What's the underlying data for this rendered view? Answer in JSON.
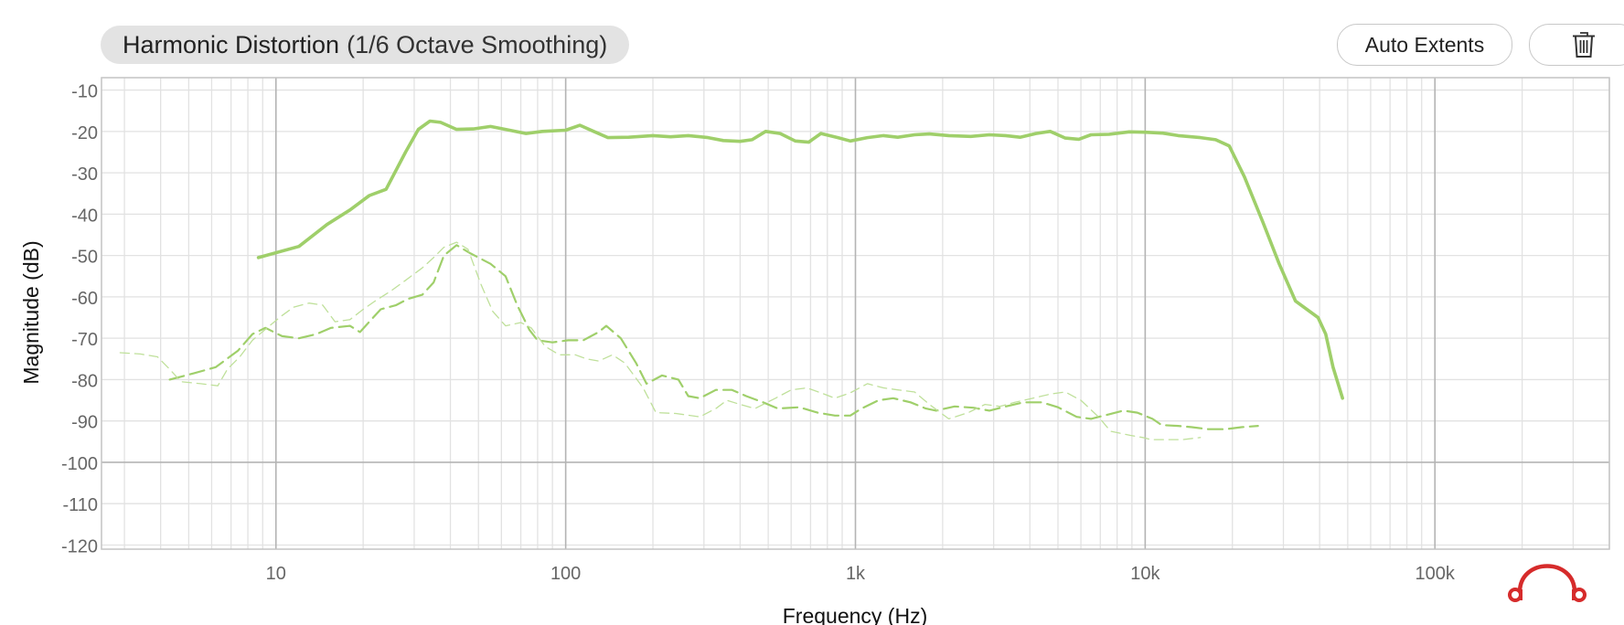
{
  "header": {
    "title": "Harmonic Distortion",
    "subtitle": "(1/6 Octave Smoothing)"
  },
  "toolbar": {
    "auto_extents_label": "Auto Extents",
    "delete_icon": "trash-icon"
  },
  "logo": {
    "icon": "headphones-logo-icon",
    "color": "#d62b2b"
  },
  "colors": {
    "series": "#9fcf6a",
    "grid": "#e2e2e2",
    "major_grid": "#b4b4b4",
    "axis_text": "#666666"
  },
  "chart_data": {
    "type": "line",
    "title": "Harmonic Distortion",
    "subtitle": "(1/6 Octave Smoothing)",
    "xlabel": "Frequency (Hz)",
    "ylabel": "Magnitude (dB)",
    "x_scale": "log",
    "xlim": [
      2.5,
      400000
    ],
    "ylim": [
      -121,
      -7
    ],
    "x_ticks": [
      10,
      100,
      1000,
      10000,
      100000
    ],
    "x_tick_labels": [
      "10",
      "100",
      "1k",
      "10k",
      "100k"
    ],
    "y_ticks": [
      -10,
      -20,
      -30,
      -40,
      -50,
      -60,
      -70,
      -80,
      -90,
      -100,
      -110,
      -120
    ],
    "y_tick_labels": [
      "-10",
      "-20",
      "-30",
      "-40",
      "-50",
      "-60",
      "-70",
      "-80",
      "-90",
      "-100",
      "-110",
      "-120"
    ],
    "grid": true,
    "legend": "none",
    "series": [
      {
        "style": "solid",
        "color": "#9fcf6a",
        "points": [
          [
            8.7,
            -50.5
          ],
          [
            12,
            -47.8
          ],
          [
            15,
            -42.5
          ],
          [
            18,
            -39
          ],
          [
            21,
            -35.5
          ],
          [
            24,
            -34
          ],
          [
            28,
            -25
          ],
          [
            31,
            -19.5
          ],
          [
            34,
            -17.5
          ],
          [
            37,
            -17.8
          ],
          [
            42,
            -19.5
          ],
          [
            48,
            -19.4
          ],
          [
            55,
            -18.8
          ],
          [
            62,
            -19.5
          ],
          [
            73,
            -20.5
          ],
          [
            83,
            -20
          ],
          [
            100,
            -19.7
          ],
          [
            112,
            -18.5
          ],
          [
            125,
            -20
          ],
          [
            140,
            -21.5
          ],
          [
            165,
            -21.4
          ],
          [
            200,
            -21
          ],
          [
            230,
            -21.3
          ],
          [
            265,
            -21
          ],
          [
            310,
            -21.5
          ],
          [
            350,
            -22.2
          ],
          [
            400,
            -22.4
          ],
          [
            440,
            -22
          ],
          [
            490,
            -20
          ],
          [
            550,
            -20.5
          ],
          [
            620,
            -22.3
          ],
          [
            690,
            -22.6
          ],
          [
            760,
            -20.5
          ],
          [
            870,
            -21.5
          ],
          [
            960,
            -22.3
          ],
          [
            1100,
            -21.5
          ],
          [
            1250,
            -21
          ],
          [
            1400,
            -21.4
          ],
          [
            1600,
            -20.8
          ],
          [
            1800,
            -20.6
          ],
          [
            2100,
            -21
          ],
          [
            2500,
            -21.2
          ],
          [
            2900,
            -20.8
          ],
          [
            3300,
            -21
          ],
          [
            3700,
            -21.4
          ],
          [
            4200,
            -20.5
          ],
          [
            4700,
            -20
          ],
          [
            5300,
            -21.6
          ],
          [
            5900,
            -21.9
          ],
          [
            6500,
            -20.8
          ],
          [
            7500,
            -20.7
          ],
          [
            8800,
            -20.1
          ],
          [
            10000,
            -20.2
          ],
          [
            11500,
            -20.4
          ],
          [
            13000,
            -21
          ],
          [
            15500,
            -21.5
          ],
          [
            17500,
            -22
          ],
          [
            19500,
            -23.5
          ],
          [
            22000,
            -31
          ],
          [
            25500,
            -42
          ],
          [
            29000,
            -52
          ],
          [
            33000,
            -61
          ],
          [
            39500,
            -65
          ],
          [
            42000,
            -69
          ],
          [
            44500,
            -77
          ],
          [
            48000,
            -84.5
          ]
        ]
      },
      {
        "style": "dashed",
        "color": "#9fcf6a",
        "points": [
          [
            4.3,
            -80
          ],
          [
            5.2,
            -78.5
          ],
          [
            6.2,
            -77
          ],
          [
            7.4,
            -73
          ],
          [
            8.3,
            -69
          ],
          [
            9.2,
            -67.5
          ],
          [
            10.5,
            -69.5
          ],
          [
            12,
            -70
          ],
          [
            13.8,
            -69
          ],
          [
            15.5,
            -67.5
          ],
          [
            18,
            -67
          ],
          [
            19.5,
            -68.5
          ],
          [
            21,
            -66
          ],
          [
            23,
            -63
          ],
          [
            26,
            -62
          ],
          [
            28.5,
            -60.5
          ],
          [
            32,
            -59.5
          ],
          [
            35,
            -56.5
          ],
          [
            38,
            -50
          ],
          [
            42,
            -47.5
          ],
          [
            47,
            -49.5
          ],
          [
            55,
            -52
          ],
          [
            62,
            -55
          ],
          [
            68,
            -62
          ],
          [
            75,
            -68
          ],
          [
            80,
            -70.5
          ],
          [
            90,
            -71
          ],
          [
            102,
            -70.5
          ],
          [
            115,
            -70.5
          ],
          [
            130,
            -68.5
          ],
          [
            138,
            -67
          ],
          [
            155,
            -70
          ],
          [
            175,
            -76
          ],
          [
            190,
            -81
          ],
          [
            215,
            -79
          ],
          [
            245,
            -80
          ],
          [
            265,
            -84
          ],
          [
            290,
            -84.5
          ],
          [
            330,
            -82.5
          ],
          [
            375,
            -82.5
          ],
          [
            420,
            -84
          ],
          [
            480,
            -85.5
          ],
          [
            540,
            -87
          ],
          [
            640,
            -86.7
          ],
          [
            740,
            -88
          ],
          [
            850,
            -88.7
          ],
          [
            960,
            -88.7
          ],
          [
            1050,
            -87
          ],
          [
            1200,
            -85
          ],
          [
            1350,
            -84.5
          ],
          [
            1550,
            -85.5
          ],
          [
            1750,
            -87
          ],
          [
            1900,
            -87.5
          ],
          [
            2200,
            -86.5
          ],
          [
            2550,
            -86.8
          ],
          [
            2900,
            -87.5
          ],
          [
            3300,
            -86.5
          ],
          [
            3800,
            -85.5
          ],
          [
            4400,
            -85.5
          ],
          [
            5000,
            -86.7
          ],
          [
            5800,
            -89
          ],
          [
            6500,
            -89.5
          ],
          [
            7400,
            -88.5
          ],
          [
            8400,
            -87.5
          ],
          [
            9400,
            -88
          ],
          [
            10600,
            -89.5
          ],
          [
            11400,
            -91
          ],
          [
            13000,
            -91.2
          ],
          [
            14500,
            -91.5
          ],
          [
            16500,
            -92
          ],
          [
            19000,
            -92
          ],
          [
            21500,
            -91.5
          ],
          [
            24500,
            -91.2
          ]
        ]
      },
      {
        "style": "thin-dashed",
        "color": "#bfe09a",
        "points": [
          [
            2.9,
            -73.5
          ],
          [
            3.4,
            -73.8
          ],
          [
            3.9,
            -74.5
          ],
          [
            4.3,
            -77.5
          ],
          [
            4.7,
            -80.5
          ],
          [
            5.5,
            -81
          ],
          [
            6.3,
            -81.5
          ],
          [
            6.8,
            -77.5
          ],
          [
            7.5,
            -74.5
          ],
          [
            8.3,
            -70.5
          ],
          [
            9.5,
            -67
          ],
          [
            10.5,
            -64.5
          ],
          [
            11.5,
            -62.5
          ],
          [
            13,
            -61.5
          ],
          [
            14.5,
            -62
          ],
          [
            16,
            -66
          ],
          [
            18,
            -65.5
          ],
          [
            20,
            -63
          ],
          [
            22,
            -61
          ],
          [
            25,
            -58.5
          ],
          [
            28,
            -56
          ],
          [
            32,
            -53
          ],
          [
            35,
            -50.5
          ],
          [
            38,
            -48
          ],
          [
            42,
            -46.8
          ],
          [
            46,
            -48.5
          ],
          [
            51,
            -57
          ],
          [
            56,
            -63.5
          ],
          [
            62,
            -67
          ],
          [
            70,
            -66.2
          ],
          [
            76,
            -67.5
          ],
          [
            85,
            -72
          ],
          [
            95,
            -74
          ],
          [
            108,
            -74
          ],
          [
            118,
            -75
          ],
          [
            130,
            -75.5
          ],
          [
            145,
            -74
          ],
          [
            160,
            -76
          ],
          [
            185,
            -82
          ],
          [
            205,
            -88
          ],
          [
            240,
            -88.2
          ],
          [
            290,
            -89
          ],
          [
            330,
            -87
          ],
          [
            360,
            -85
          ],
          [
            400,
            -86
          ],
          [
            450,
            -87
          ],
          [
            530,
            -84.5
          ],
          [
            600,
            -82.5
          ],
          [
            680,
            -82
          ],
          [
            760,
            -83.2
          ],
          [
            850,
            -84.5
          ],
          [
            960,
            -83.2
          ],
          [
            1100,
            -81
          ],
          [
            1250,
            -82
          ],
          [
            1400,
            -82.5
          ],
          [
            1600,
            -83
          ],
          [
            1800,
            -86
          ],
          [
            2100,
            -89.5
          ],
          [
            2450,
            -88
          ],
          [
            2800,
            -86
          ],
          [
            3150,
            -86.5
          ],
          [
            3550,
            -85.5
          ],
          [
            4100,
            -84.5
          ],
          [
            4700,
            -83.5
          ],
          [
            5300,
            -83
          ],
          [
            6000,
            -85
          ],
          [
            6900,
            -89
          ],
          [
            7600,
            -92.5
          ],
          [
            8900,
            -93.5
          ],
          [
            9800,
            -94
          ],
          [
            10500,
            -94.5
          ],
          [
            11800,
            -94.5
          ],
          [
            13500,
            -94.5
          ],
          [
            15500,
            -94
          ]
        ]
      }
    ]
  }
}
